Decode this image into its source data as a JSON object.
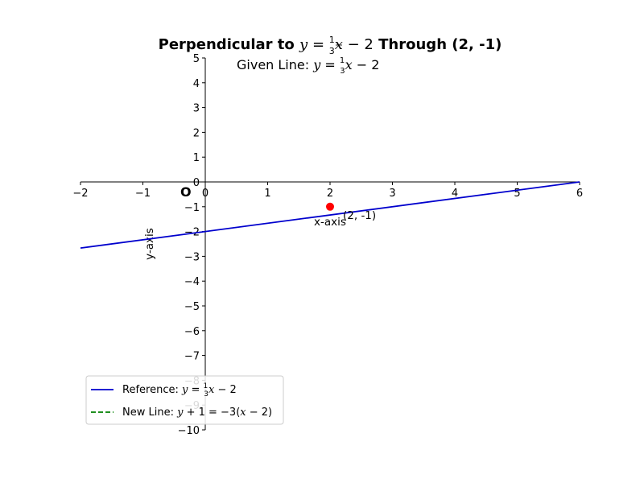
{
  "chart_data": {
    "type": "line",
    "title": "Perpendicular to y = ⅓x − 2 Through (2, -1)",
    "title_parts": {
      "prefix": "Perpendicular to ",
      "y": "y",
      "eq": " = ",
      "num": "1",
      "den": "3",
      "x": "x",
      "rest": " − 2",
      "suffix": " Through (2, -1)"
    },
    "annotation": "Given Line: y = ⅓x − 2",
    "annotation_parts": {
      "prefix": "Given Line: ",
      "y": "y",
      "eq": " = ",
      "num": "1",
      "den": "3",
      "x": "x",
      "rest": " − 2"
    },
    "origin_label": "O",
    "xlabel": "x-axis",
    "ylabel": "y-axis",
    "xlim": [
      -2,
      6
    ],
    "ylim": [
      -10,
      5
    ],
    "x_ticks": [
      -2,
      -1,
      0,
      1,
      2,
      3,
      4,
      5,
      6
    ],
    "x_tick_labels": [
      "−2",
      "−1",
      "0",
      "1",
      "2",
      "3",
      "4",
      "5",
      "6"
    ],
    "y_ticks": [
      -10,
      -9,
      -8,
      -7,
      -6,
      -5,
      -4,
      -3,
      -2,
      -1,
      0,
      1,
      2,
      3,
      4,
      5
    ],
    "y_tick_labels": [
      "−10",
      "−9",
      "−8",
      "−7",
      "−6",
      "−5",
      "−4",
      "−3",
      "−2",
      "−1",
      "0",
      "1",
      "2",
      "3",
      "4",
      "5"
    ],
    "grid": false,
    "series": [
      {
        "name": "Reference: y = ⅓x − 2",
        "legend_parts": {
          "prefix": "Reference: ",
          "y": "y",
          "eq": " = ",
          "num": "1",
          "den": "3",
          "x": "x",
          "rest": " − 2"
        },
        "color": "#0000cd",
        "style": "solid",
        "x": [
          -2,
          6
        ],
        "y": [
          -2.6667,
          0
        ]
      },
      {
        "name": "New Line: y + 1 = −3(x − 2)",
        "legend_parts": {
          "prefix": "New Line: ",
          "y": "y",
          "mid": " + 1 = −3(",
          "x": "x",
          "rest": " − 2)"
        },
        "color": "#008000",
        "style": "dashed",
        "x": [],
        "y": []
      }
    ],
    "points": [
      {
        "x": 2,
        "y": -1,
        "label": "(2, -1)",
        "color": "#ff0000"
      }
    ],
    "legend_position": "lower-left"
  }
}
